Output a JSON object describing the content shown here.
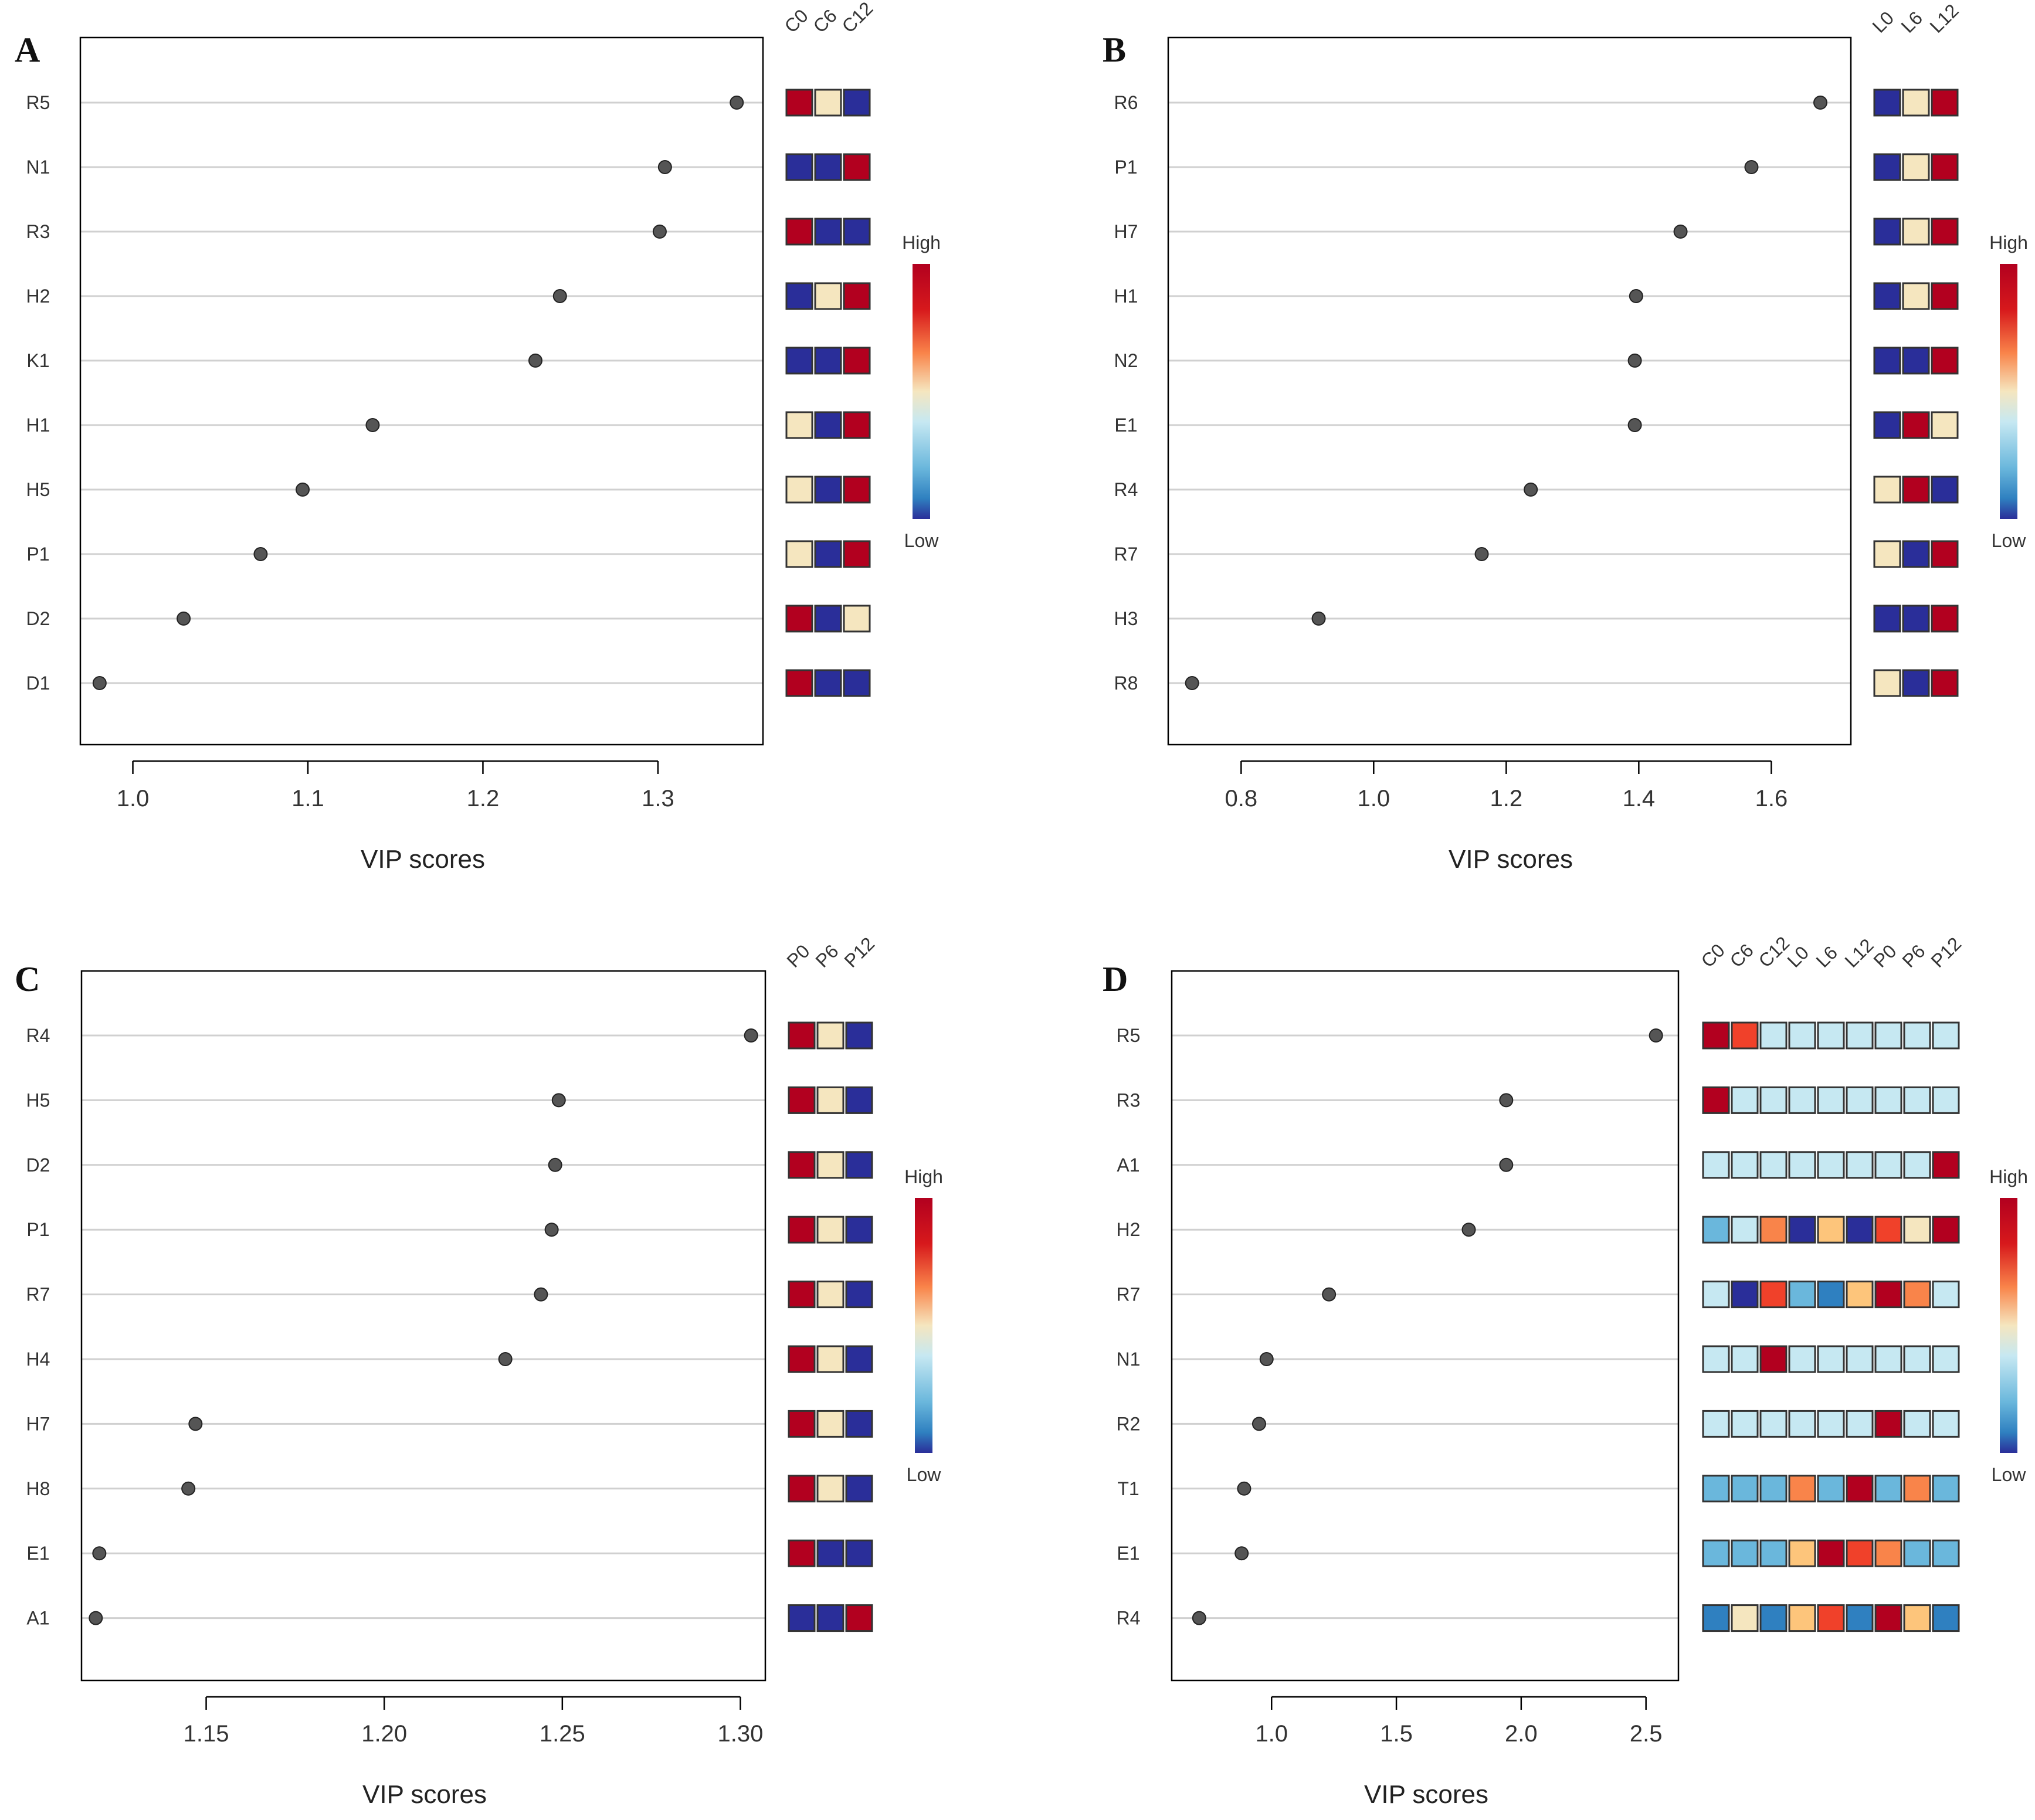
{
  "colors": {
    "high": "#b2001f",
    "red": "#d7191c",
    "orange_red": "#f0412a",
    "orange": "#f9844a",
    "light_orange": "#fdc57b",
    "cream": "#f5e6bf",
    "light_blue": "#c6e8f2",
    "sky": "#6ab7dc",
    "mid_blue": "#2f80c0",
    "low": "#2a2e99",
    "dot": "#555555",
    "grid": "#d0d0d0",
    "axis": "#000000"
  },
  "chart_data": [
    {
      "panel": "A",
      "type": "scatter",
      "xlabel": "VIP scores",
      "xlim": [
        0.97,
        1.36
      ],
      "xticks": [
        1.0,
        1.1,
        1.2,
        1.3
      ],
      "xtick_labels": [
        "1.0",
        "1.1",
        "1.2",
        "1.3"
      ],
      "rows": [
        "R5",
        "N1",
        "R3",
        "H2",
        "K1",
        "H1",
        "H5",
        "P1",
        "D2",
        "D1"
      ],
      "values": [
        1.345,
        1.304,
        1.301,
        1.244,
        1.23,
        1.137,
        1.097,
        1.073,
        1.029,
        0.981
      ],
      "columns": [
        "C0",
        "C6",
        "C12"
      ],
      "heat": [
        [
          "high",
          "cream",
          "low"
        ],
        [
          "low",
          "low",
          "high"
        ],
        [
          "high",
          "low",
          "low"
        ],
        [
          "low",
          "cream",
          "high"
        ],
        [
          "low",
          "low",
          "high"
        ],
        [
          "cream",
          "low",
          "high"
        ],
        [
          "cream",
          "low",
          "high"
        ],
        [
          "cream",
          "low",
          "high"
        ],
        [
          "high",
          "low",
          "cream"
        ],
        [
          "high",
          "low",
          "low"
        ]
      ],
      "legend": {
        "high": "High",
        "low": "Low"
      }
    },
    {
      "panel": "B",
      "type": "scatter",
      "xlabel": "VIP scores",
      "xlim": [
        0.69,
        1.72
      ],
      "xticks": [
        0.8,
        1.0,
        1.2,
        1.4,
        1.6
      ],
      "xtick_labels": [
        "0.8",
        "1.0",
        "1.2",
        "1.4",
        "1.6"
      ],
      "rows": [
        "R6",
        "P1",
        "H7",
        "H1",
        "N2",
        "E1",
        "R4",
        "R7",
        "H3",
        "R8"
      ],
      "values": [
        1.674,
        1.57,
        1.463,
        1.396,
        1.394,
        1.394,
        1.237,
        1.163,
        0.917,
        0.726
      ],
      "columns": [
        "L0",
        "L6",
        "L12"
      ],
      "heat": [
        [
          "low",
          "cream",
          "high"
        ],
        [
          "low",
          "cream",
          "high"
        ],
        [
          "low",
          "cream",
          "high"
        ],
        [
          "low",
          "cream",
          "high"
        ],
        [
          "low",
          "low",
          "high"
        ],
        [
          "low",
          "high",
          "cream"
        ],
        [
          "cream",
          "high",
          "low"
        ],
        [
          "cream",
          "low",
          "high"
        ],
        [
          "low",
          "low",
          "high"
        ],
        [
          "cream",
          "low",
          "high"
        ]
      ],
      "legend": {
        "high": "High",
        "low": "Low"
      }
    },
    {
      "panel": "C",
      "type": "scatter",
      "xlabel": "VIP scores",
      "xlim": [
        1.115,
        1.307
      ],
      "xticks": [
        1.15,
        1.2,
        1.25,
        1.3
      ],
      "xtick_labels": [
        "1.15",
        "1.20",
        "1.25",
        "1.30"
      ],
      "rows": [
        "R4",
        "H5",
        "D2",
        "P1",
        "R7",
        "H4",
        "H7",
        "H8",
        "E1",
        "A1"
      ],
      "values": [
        1.303,
        1.249,
        1.248,
        1.247,
        1.244,
        1.234,
        1.147,
        1.145,
        1.12,
        1.119
      ],
      "columns": [
        "P0",
        "P6",
        "P12"
      ],
      "heat": [
        [
          "high",
          "cream",
          "low"
        ],
        [
          "high",
          "cream",
          "low"
        ],
        [
          "high",
          "cream",
          "low"
        ],
        [
          "high",
          "cream",
          "low"
        ],
        [
          "high",
          "cream",
          "low"
        ],
        [
          "high",
          "cream",
          "low"
        ],
        [
          "high",
          "cream",
          "low"
        ],
        [
          "high",
          "cream",
          "low"
        ],
        [
          "high",
          "low",
          "low"
        ],
        [
          "low",
          "low",
          "high"
        ]
      ],
      "legend": {
        "high": "High",
        "low": "Low"
      }
    },
    {
      "panel": "D",
      "type": "scatter",
      "xlabel": "VIP scores",
      "xlim": [
        0.6,
        2.63
      ],
      "xticks": [
        1.0,
        1.5,
        2.0,
        2.5
      ],
      "xtick_labels": [
        "1.0",
        "1.5",
        "2.0",
        "2.5"
      ],
      "rows": [
        "R5",
        "R3",
        "A1",
        "H2",
        "R7",
        "N1",
        "R2",
        "T1",
        "E1",
        "R4"
      ],
      "values": [
        2.54,
        1.94,
        1.94,
        1.79,
        1.23,
        0.98,
        0.95,
        0.89,
        0.88,
        0.71
      ],
      "columns": [
        "C0",
        "C6",
        "C12",
        "L0",
        "L6",
        "L12",
        "P0",
        "P6",
        "P12"
      ],
      "heat": [
        [
          "high",
          "orange_red",
          "light_blue",
          "light_blue",
          "light_blue",
          "light_blue",
          "light_blue",
          "light_blue",
          "light_blue"
        ],
        [
          "high",
          "light_blue",
          "light_blue",
          "light_blue",
          "light_blue",
          "light_blue",
          "light_blue",
          "light_blue",
          "light_blue"
        ],
        [
          "light_blue",
          "light_blue",
          "light_blue",
          "light_blue",
          "light_blue",
          "light_blue",
          "light_blue",
          "light_blue",
          "high"
        ],
        [
          "sky",
          "light_blue",
          "orange",
          "low",
          "light_orange",
          "low",
          "orange_red",
          "cream",
          "high"
        ],
        [
          "light_blue",
          "low",
          "orange_red",
          "sky",
          "mid_blue",
          "light_orange",
          "high",
          "orange",
          "light_blue"
        ],
        [
          "light_blue",
          "light_blue",
          "high",
          "light_blue",
          "light_blue",
          "light_blue",
          "light_blue",
          "light_blue",
          "light_blue"
        ],
        [
          "light_blue",
          "light_blue",
          "light_blue",
          "light_blue",
          "light_blue",
          "light_blue",
          "high",
          "light_blue",
          "light_blue"
        ],
        [
          "sky",
          "sky",
          "sky",
          "orange",
          "sky",
          "high",
          "sky",
          "orange",
          "sky"
        ],
        [
          "sky",
          "sky",
          "sky",
          "light_orange",
          "high",
          "orange_red",
          "orange",
          "sky",
          "sky"
        ],
        [
          "mid_blue",
          "cream",
          "mid_blue",
          "light_orange",
          "orange_red",
          "mid_blue",
          "high",
          "light_orange",
          "mid_blue"
        ]
      ],
      "legend": {
        "high": "High",
        "low": "Low"
      }
    }
  ]
}
